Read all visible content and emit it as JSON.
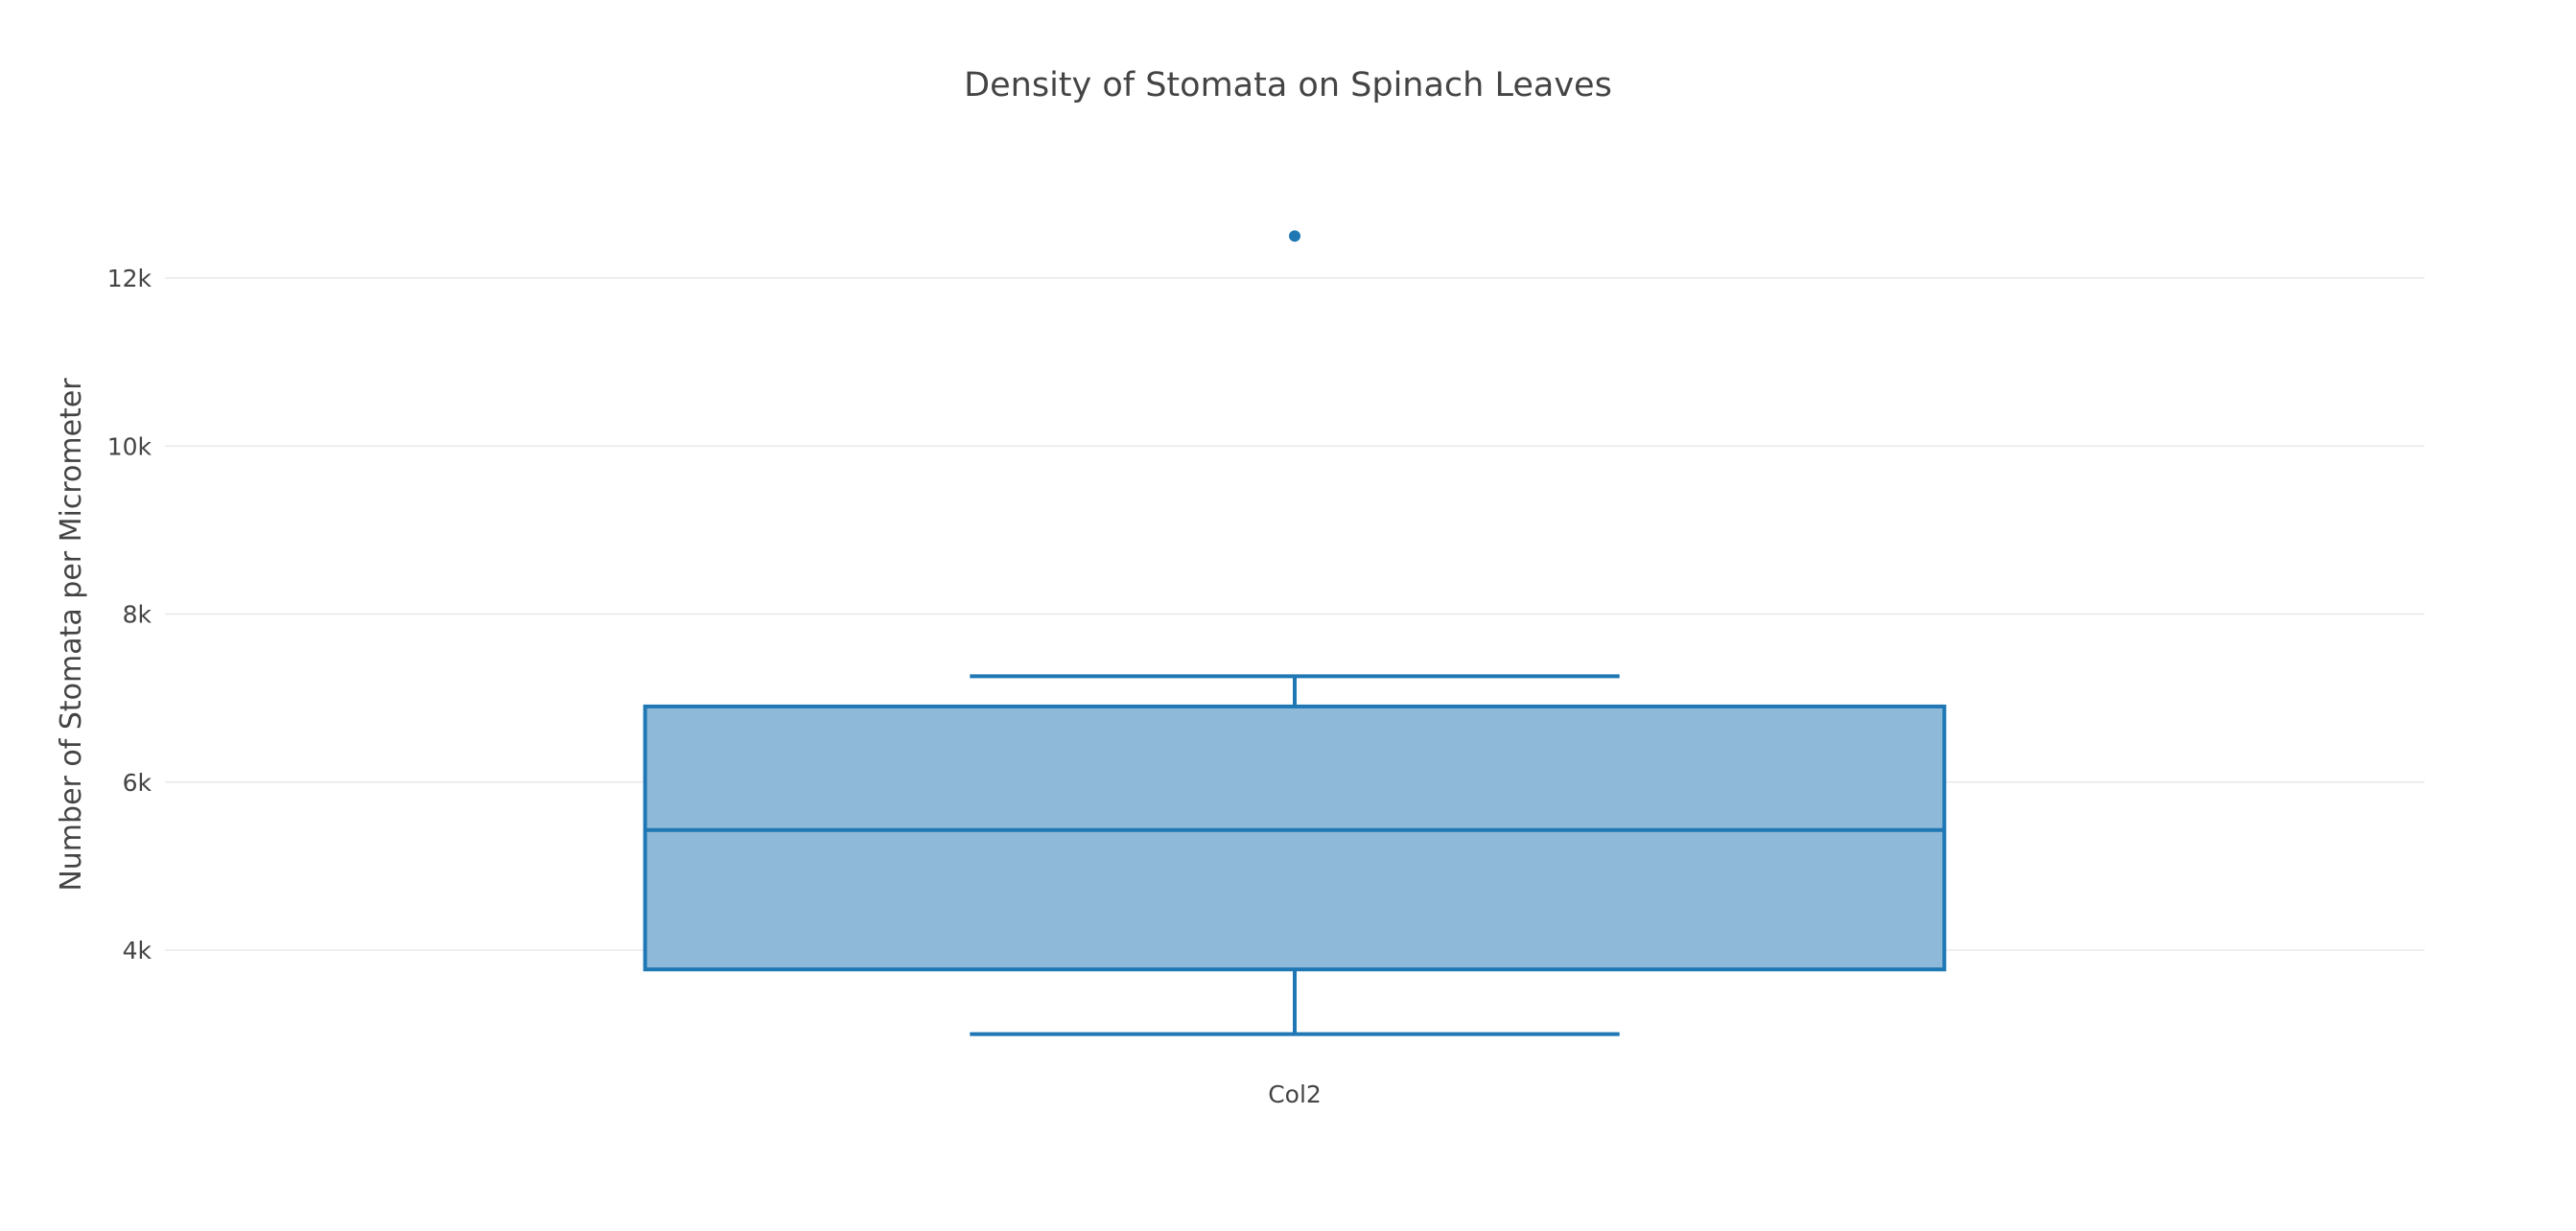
{
  "chart_data": {
    "type": "box",
    "title": "Density of Stomata on Spinach Leaves",
    "xlabel": "",
    "ylabel": "Number of Stomata per Micrometer",
    "ylim": [
      2600,
      13200
    ],
    "y_ticks": [
      4000,
      6000,
      8000,
      10000,
      12000
    ],
    "y_tick_labels": [
      "4k",
      "6k",
      "8k",
      "10k",
      "12k"
    ],
    "grid": true,
    "categories": [
      "Col2"
    ],
    "series": [
      {
        "name": "Col2",
        "lowerfence": 3000,
        "q1": 3770,
        "median": 5430,
        "q3": 6900,
        "upperfence": 7260,
        "outliers": [
          12500
        ],
        "color": "#1f77b4",
        "fill": "#8fb9d9"
      }
    ]
  }
}
